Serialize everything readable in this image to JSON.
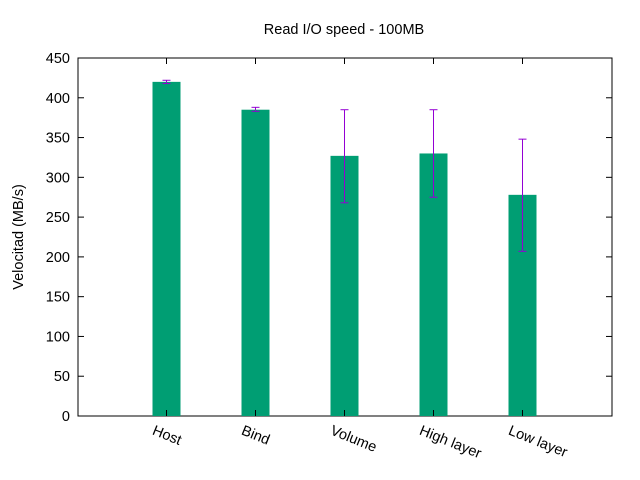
{
  "chart_data": {
    "type": "bar",
    "title": "Read I/O speed - 100MB",
    "xlabel": "",
    "ylabel": "Velocitad (MB/s)",
    "categories": [
      "Host",
      "Bind",
      "Volume",
      "High layer",
      "Low layer"
    ],
    "values": [
      420,
      385,
      327,
      330,
      278
    ],
    "error_low": [
      418,
      383,
      268,
      275,
      207
    ],
    "error_high": [
      422,
      388,
      385,
      385,
      348
    ],
    "ylim": [
      0,
      450
    ],
    "yticks": [
      0,
      50,
      100,
      150,
      200,
      250,
      300,
      350,
      400,
      450
    ],
    "grid": false,
    "legend": "none",
    "colors": {
      "bar": "#009e73",
      "error": "#9400d3",
      "axis": "#000000"
    }
  }
}
